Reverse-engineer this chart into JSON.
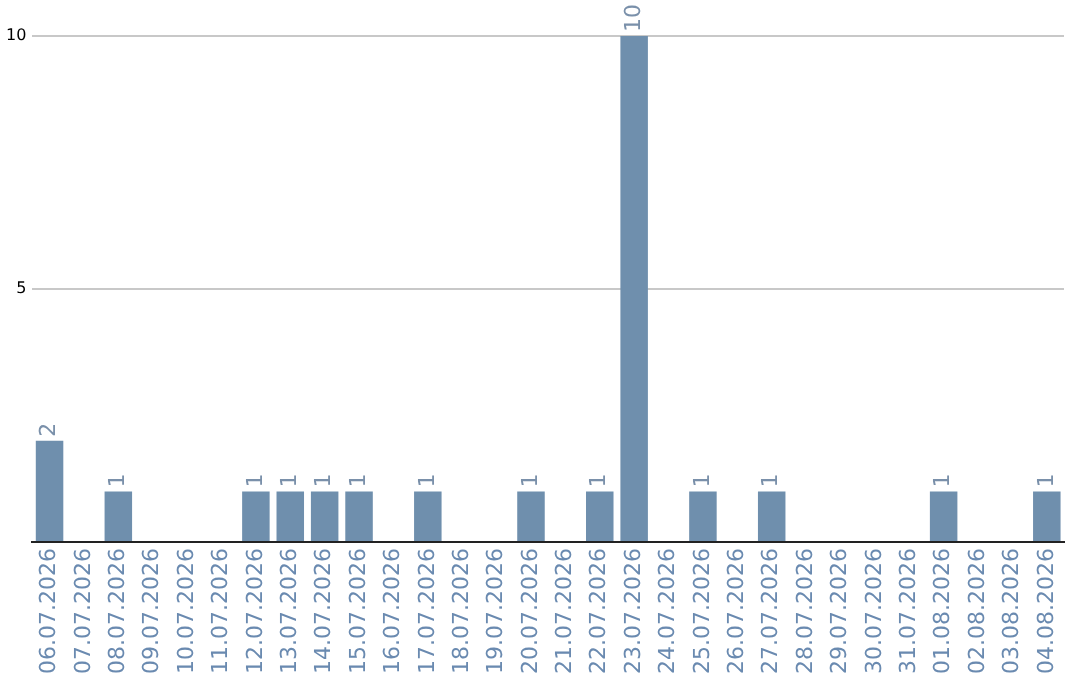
{
  "chart_data": {
    "type": "bar",
    "categories": [
      "06.07.2026",
      "07.07.2026",
      "08.07.2026",
      "09.07.2026",
      "10.07.2026",
      "11.07.2026",
      "12.07.2026",
      "13.07.2026",
      "14.07.2026",
      "15.07.2026",
      "16.07.2026",
      "17.07.2026",
      "18.07.2026",
      "19.07.2026",
      "20.07.2026",
      "21.07.2026",
      "22.07.2026",
      "23.07.2026",
      "24.07.2026",
      "25.07.2026",
      "26.07.2026",
      "27.07.2026",
      "28.07.2026",
      "29.07.2026",
      "30.07.2026",
      "31.07.2026",
      "01.08.2026",
      "02.08.2026",
      "03.08.2026",
      "04.08.2026"
    ],
    "values": [
      2,
      0,
      1,
      0,
      0,
      0,
      1,
      1,
      1,
      1,
      0,
      1,
      0,
      0,
      1,
      0,
      1,
      10,
      0,
      1,
      0,
      1,
      0,
      0,
      0,
      0,
      1,
      0,
      0,
      1
    ],
    "value_labels": [
      "2",
      null,
      "1",
      null,
      null,
      null,
      "1",
      "1",
      "1",
      "1",
      null,
      "1",
      null,
      null,
      "1",
      null,
      "1",
      "10",
      null,
      "1",
      null,
      "1",
      null,
      null,
      null,
      null,
      "1",
      null,
      null,
      "1"
    ],
    "color": "#6f8fad",
    "ylim": [
      0,
      10
    ],
    "yticks": [
      {
        "value": 0,
        "label": null
      },
      5,
      10
    ],
    "grid": "y",
    "legend": false
  }
}
